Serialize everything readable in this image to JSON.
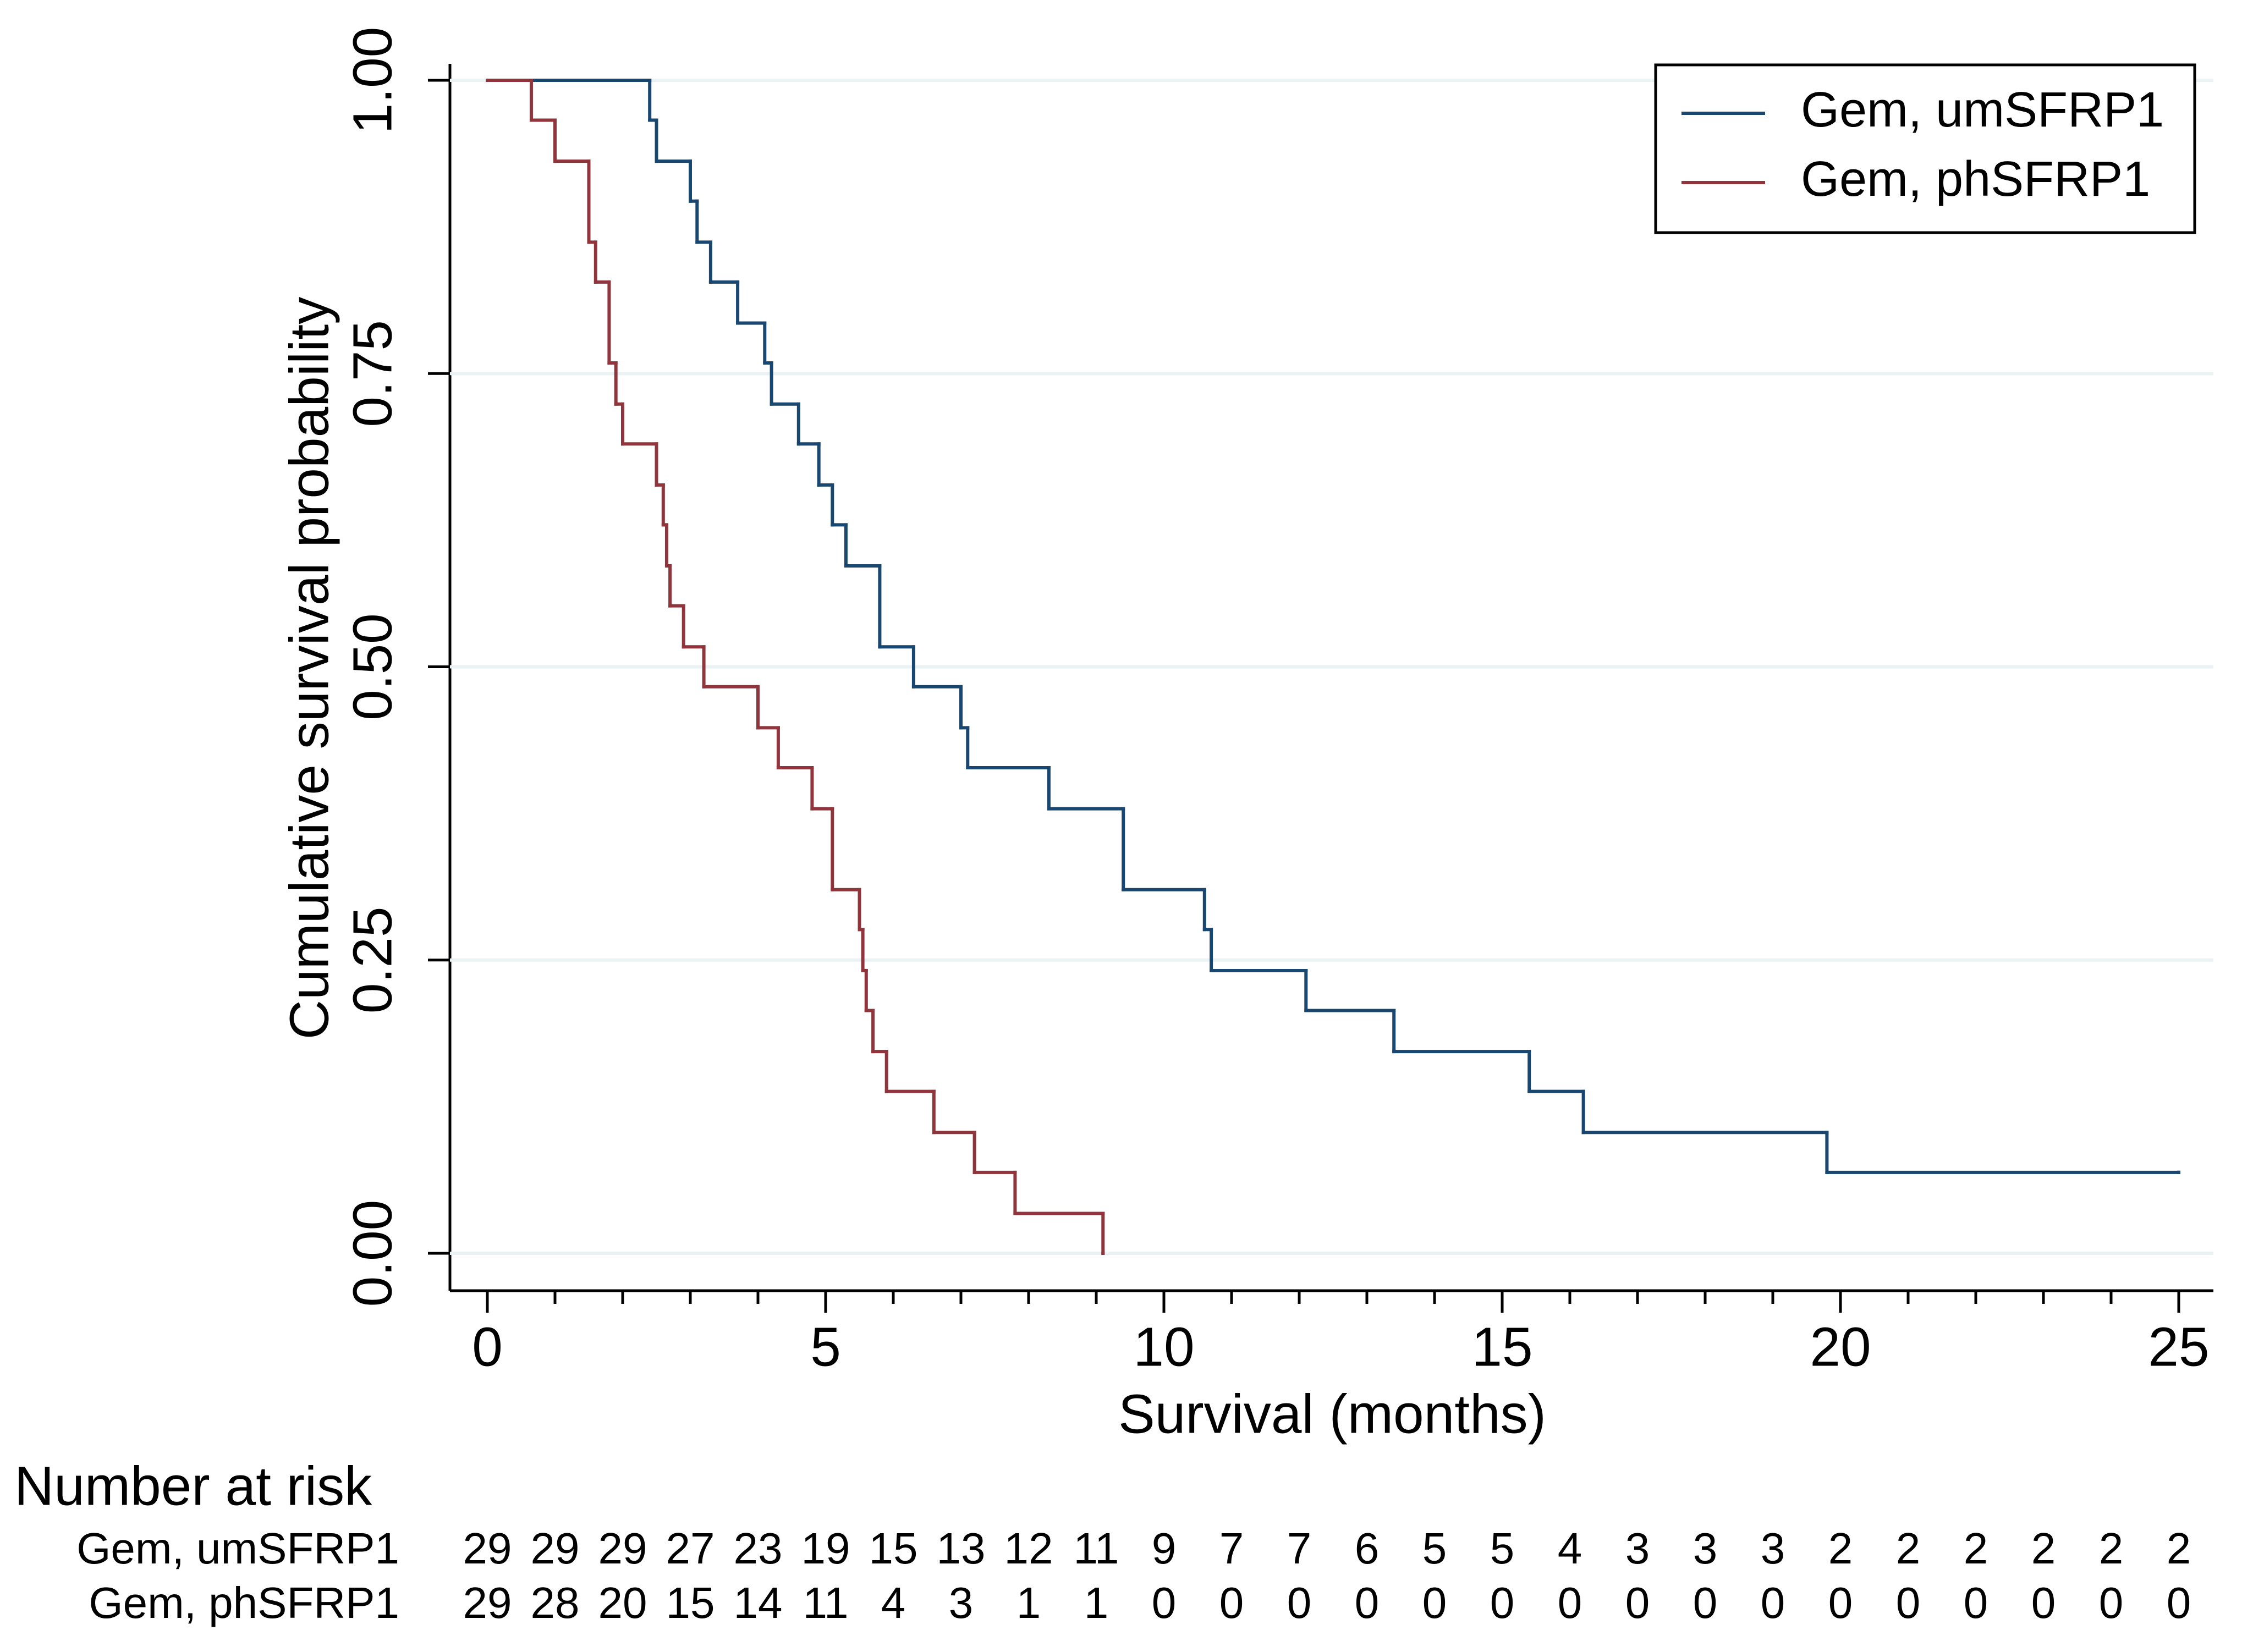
{
  "chart_data": {
    "type": "step",
    "xlabel": "Survival (months)",
    "ylabel": "Cumulative survival probability",
    "xlim": [
      0,
      25
    ],
    "ylim": [
      0,
      1
    ],
    "xticks": [
      0,
      5,
      10,
      15,
      20,
      25
    ],
    "xminorticks": [
      0,
      1,
      2,
      3,
      4,
      5,
      6,
      7,
      8,
      9,
      10,
      11,
      12,
      13,
      14,
      15,
      16,
      17,
      18,
      19,
      20,
      21,
      22,
      23,
      24,
      25
    ],
    "yticks": [
      {
        "value": 0,
        "label": "0.00"
      },
      {
        "value": 0.25,
        "label": "0.25"
      },
      {
        "value": 0.5,
        "label": "0.50"
      },
      {
        "value": 0.75,
        "label": "0.75"
      },
      {
        "value": 1,
        "label": "1.00"
      }
    ],
    "grid": true,
    "legend": "top-right",
    "series": [
      {
        "name": "Gem, umSFRP1",
        "color": "#1a476f",
        "x": [
          0,
          2.4,
          2.5,
          3.0,
          3.1,
          3.3,
          3.7,
          4.1,
          4.2,
          4.6,
          4.9,
          5.1,
          5.3,
          5.8,
          6.3,
          7.0,
          7.1,
          8.3,
          9.4,
          10.6,
          10.7,
          12.1,
          13.4,
          15.4,
          16.2,
          19.8,
          25
        ],
        "values": [
          1,
          0.966,
          0.931,
          0.897,
          0.862,
          0.828,
          0.793,
          0.759,
          0.724,
          0.69,
          0.655,
          0.621,
          0.586,
          0.517,
          0.483,
          0.448,
          0.414,
          0.379,
          0.31,
          0.276,
          0.241,
          0.207,
          0.172,
          0.138,
          0.103,
          0.069,
          0.069
        ]
      },
      {
        "name": "Gem, phSFRP1",
        "color": "#90353b",
        "x": [
          0,
          0.65,
          1.0,
          1.5,
          1.6,
          1.8,
          1.9,
          2.0,
          2.5,
          2.6,
          2.65,
          2.7,
          2.9,
          3.2,
          4.0,
          4.3,
          4.8,
          5.1,
          5.5,
          5.55,
          5.6,
          5.7,
          5.9,
          6.6,
          7.2,
          7.8,
          9.1
        ],
        "values": [
          1,
          0.966,
          0.931,
          0.862,
          0.828,
          0.759,
          0.724,
          0.69,
          0.655,
          0.621,
          0.586,
          0.552,
          0.517,
          0.483,
          0.448,
          0.414,
          0.379,
          0.31,
          0.276,
          0.241,
          0.207,
          0.172,
          0.138,
          0.103,
          0.069,
          0.034,
          0
        ]
      }
    ],
    "risk_table": {
      "title": "Number at risk",
      "rows": [
        {
          "name": "Gem, umSFRP1",
          "color": "#1a476f",
          "values": [
            29,
            29,
            29,
            27,
            23,
            19,
            15,
            13,
            12,
            11,
            9,
            7,
            7,
            6,
            5,
            5,
            4,
            3,
            3,
            3,
            2,
            2,
            2,
            2,
            2,
            2
          ]
        },
        {
          "name": "Gem, phSFRP1",
          "color": "#90353b",
          "values": [
            29,
            28,
            20,
            15,
            14,
            11,
            4,
            3,
            1,
            1,
            0,
            0,
            0,
            0,
            0,
            0,
            0,
            0,
            0,
            0,
            0,
            0,
            0,
            0,
            0,
            0
          ]
        }
      ]
    }
  }
}
